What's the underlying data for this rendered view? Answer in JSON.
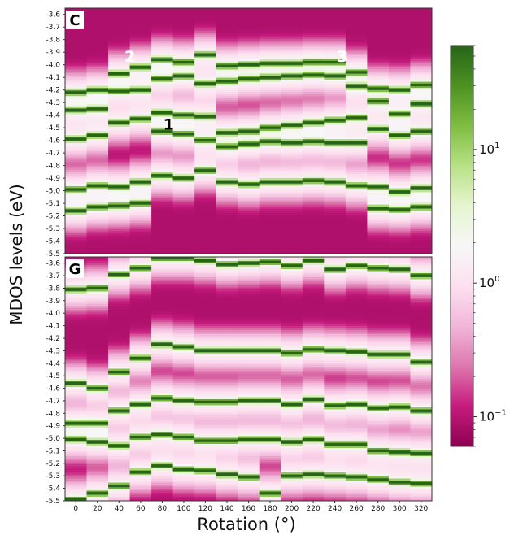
{
  "chart_data": {
    "type": "heatmap",
    "ylabel": "MDOS levels (eV)",
    "xlabel": "Rotation (°)",
    "x_ticks": [
      "0",
      "20",
      "40",
      "60",
      "80",
      "100",
      "120",
      "140",
      "160",
      "180",
      "200",
      "220",
      "240",
      "260",
      "280",
      "300",
      "320"
    ],
    "y_ticks": [
      "-3.6",
      "-3.7",
      "-3.8",
      "-3.9",
      "-4.0",
      "-4.1",
      "-4.2",
      "-4.3",
      "-4.4",
      "-4.5",
      "-4.6",
      "-4.7",
      "-4.8",
      "-4.9",
      "-5.0",
      "-5.1",
      "-5.2",
      "-5.3",
      "-5.4",
      "-5.5"
    ],
    "ylim": [
      -5.5,
      -3.55
    ],
    "colorbar": {
      "scale": "log",
      "range": [
        0.06,
        60
      ],
      "ticks": [
        {
          "value": 10,
          "base": "10",
          "exp": "1"
        },
        {
          "value": 1,
          "base": "10",
          "exp": "0"
        },
        {
          "value": 0.1,
          "base": "10",
          "exp": "−1"
        }
      ],
      "colors": [
        "#8e0152",
        "#c51b7d",
        "#de77ae",
        "#f1b6da",
        "#fde0ef",
        "#f7f7f7",
        "#e6f5d0",
        "#b8e186",
        "#7fbc41",
        "#4d9221",
        "#276419"
      ]
    },
    "panels": [
      {
        "label": "C",
        "annotations": [
          {
            "text": "2",
            "x": 50,
            "y": -3.93,
            "style": "white"
          },
          {
            "text": "1",
            "x": 86,
            "y": -4.47,
            "style": "black"
          },
          {
            "text": "3",
            "x": 247,
            "y": -3.93,
            "style": "white"
          }
        ],
        "levels": [
          [
            -4.22,
            -4.36,
            -4.59,
            -4.99,
            -5.16
          ],
          [
            -4.2,
            -4.35,
            -4.56,
            -4.96,
            -5.13
          ],
          [
            -4.07,
            -4.21,
            -4.46,
            -4.97,
            -5.12
          ],
          [
            -4.02,
            -4.2,
            -4.43,
            -4.93,
            -5.1
          ],
          [
            -3.96,
            -4.11,
            -4.38,
            -4.53,
            -4.88
          ],
          [
            -3.98,
            -4.09,
            -4.4,
            -4.55,
            -4.9
          ],
          [
            -3.92,
            -4.15,
            -4.41,
            -4.6,
            -4.84
          ],
          [
            -4.01,
            -4.13,
            -4.54,
            -4.65,
            -4.93
          ],
          [
            -4.0,
            -4.11,
            -4.53,
            -4.63,
            -4.95
          ],
          [
            -3.99,
            -4.1,
            -4.5,
            -4.61,
            -4.93
          ],
          [
            -3.99,
            -4.09,
            -4.48,
            -4.62,
            -4.93
          ],
          [
            -3.98,
            -4.08,
            -4.46,
            -4.61,
            -4.92
          ],
          [
            -3.98,
            -4.09,
            -4.44,
            -4.62,
            -4.93
          ],
          [
            -4.06,
            -4.17,
            -4.42,
            -4.62,
            -4.96
          ],
          [
            -4.19,
            -4.29,
            -4.51,
            -4.97,
            -5.14
          ],
          [
            -4.2,
            -4.39,
            -4.56,
            -5.01,
            -5.15
          ],
          [
            -4.16,
            -4.31,
            -4.53,
            -4.98,
            -5.13
          ]
        ]
      },
      {
        "label": "G",
        "annotations": [],
        "levels": [
          [
            -3.81,
            -4.56,
            -4.88,
            -5.01,
            -5.49
          ],
          [
            -3.8,
            -4.6,
            -4.88,
            -5.03,
            -5.44
          ],
          [
            -3.69,
            -4.47,
            -4.78,
            -5.06,
            -5.38
          ],
          [
            -3.64,
            -4.36,
            -4.73,
            -4.99,
            -5.27
          ],
          [
            -3.56,
            -4.25,
            -4.68,
            -4.97,
            -5.22
          ],
          [
            -3.56,
            -4.27,
            -4.7,
            -4.99,
            -5.25
          ],
          [
            -3.58,
            -4.3,
            -4.71,
            -5.02,
            -5.26
          ],
          [
            -3.61,
            -4.3,
            -4.71,
            -5.02,
            -5.29
          ],
          [
            -3.6,
            -4.3,
            -4.7,
            -5.01,
            -5.31
          ],
          [
            -3.59,
            -4.3,
            -4.7,
            -5.01,
            -5.44
          ],
          [
            -3.62,
            -4.32,
            -4.73,
            -5.03,
            -5.3
          ],
          [
            -3.58,
            -4.29,
            -4.69,
            -5.01,
            -5.29
          ],
          [
            -3.65,
            -4.3,
            -4.74,
            -5.05,
            -5.3
          ],
          [
            -3.62,
            -4.31,
            -4.73,
            -5.05,
            -5.31
          ],
          [
            -3.64,
            -4.33,
            -4.76,
            -5.1,
            -5.33
          ],
          [
            -3.65,
            -4.33,
            -4.75,
            -5.11,
            -5.35
          ],
          [
            -3.7,
            -4.39,
            -4.78,
            -5.12,
            -5.36
          ]
        ]
      }
    ]
  }
}
